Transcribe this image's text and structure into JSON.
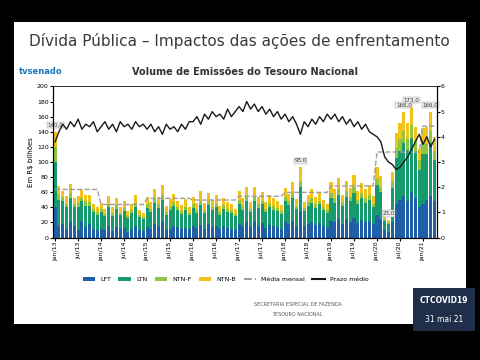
{
  "slide_title": "Dívida Pública – Impactos das ações de enfrentamento",
  "overlay": {
    "logo": "tvsenado",
    "program": "CTCOVID19",
    "date": "31 mai 21"
  },
  "footer": [
    "SECRETARIA ESPECIAL DE FAZENDA",
    "TESOURO NACIONAL"
  ],
  "chart_data": {
    "type": "bar",
    "stacked": true,
    "title": "Volume de Emissões do Tesouro Nacional",
    "y_label": "Em R$ bilhões",
    "categories": [
      "jan/13",
      null,
      null,
      null,
      null,
      null,
      "jul/13",
      null,
      null,
      null,
      null,
      null,
      "jan/14",
      null,
      null,
      null,
      null,
      null,
      "jul/14",
      null,
      null,
      null,
      null,
      null,
      "jan/15",
      null,
      null,
      null,
      null,
      null,
      "jul/15",
      null,
      null,
      null,
      null,
      null,
      "jan/16",
      null,
      null,
      null,
      null,
      null,
      "jul/16",
      null,
      null,
      null,
      null,
      null,
      "jan/17",
      null,
      null,
      null,
      null,
      null,
      "jul/17",
      null,
      null,
      null,
      null,
      null,
      "jan/18",
      null,
      null,
      null,
      null,
      null,
      "jul/18",
      null,
      null,
      null,
      null,
      null,
      "jan/19",
      null,
      null,
      null,
      null,
      null,
      "jul/19",
      null,
      null,
      null,
      null,
      null,
      "jan/20",
      null,
      null,
      null,
      null,
      null,
      "jul/20",
      null,
      null,
      null,
      null,
      null,
      "jan/21",
      null,
      null,
      null
    ],
    "series": [
      {
        "name": "LFT",
        "type": "bar",
        "color": "#1f5fa8",
        "values": [
          40,
          15,
          18,
          12,
          20,
          15,
          10,
          22,
          14,
          18,
          12,
          10,
          12,
          10,
          15,
          9,
          14,
          11,
          13,
          8,
          12,
          16,
          10,
          9,
          14,
          12,
          18,
          15,
          20,
          10,
          12,
          16,
          14,
          11,
          13,
          12,
          15,
          13,
          17,
          12,
          18,
          14,
          16,
          11,
          15,
          13,
          12,
          10,
          18,
          15,
          20,
          14,
          22,
          16,
          19,
          13,
          17,
          15,
          14,
          12,
          20,
          18,
          22,
          16,
          35,
          15,
          18,
          20,
          17,
          19,
          16,
          14,
          22,
          20,
          25,
          18,
          24,
          21,
          26,
          19,
          23,
          20,
          22,
          18,
          30,
          25,
          10,
          8,
          20,
          45,
          50,
          55,
          48,
          60,
          52,
          40,
          45,
          50,
          55,
          48
        ]
      },
      {
        "name": "LTN",
        "type": "bar",
        "color": "#179a6e",
        "values": [
          60,
          35,
          30,
          28,
          32,
          25,
          30,
          26,
          28,
          24,
          22,
          20,
          22,
          18,
          25,
          20,
          24,
          19,
          22,
          18,
          20,
          25,
          17,
          15,
          25,
          22,
          28,
          24,
          30,
          20,
          24,
          26,
          22,
          20,
          23,
          18,
          24,
          20,
          26,
          21,
          25,
          22,
          24,
          19,
          23,
          21,
          20,
          18,
          26,
          22,
          28,
          20,
          27,
          23,
          25,
          21,
          24,
          22,
          21,
          19,
          28,
          25,
          30,
          22,
          32,
          20,
          24,
          26,
          22,
          25,
          21,
          19,
          30,
          26,
          32,
          24,
          30,
          27,
          33,
          25,
          29,
          26,
          28,
          22,
          40,
          35,
          12,
          10,
          45,
          60,
          65,
          70,
          68,
          72,
          60,
          50,
          65,
          60,
          70,
          55
        ]
      },
      {
        "name": "NTN-F",
        "type": "bar",
        "color": "#8dc63f",
        "values": [
          20,
          8,
          6,
          5,
          7,
          5,
          6,
          5,
          6,
          5,
          4,
          4,
          4,
          3,
          5,
          4,
          5,
          3,
          4,
          3,
          4,
          5,
          3,
          3,
          5,
          4,
          6,
          5,
          6,
          4,
          5,
          5,
          4,
          4,
          5,
          3,
          5,
          4,
          6,
          4,
          5,
          4,
          5,
          4,
          5,
          4,
          4,
          3,
          6,
          5,
          6,
          4,
          6,
          5,
          5,
          4,
          5,
          5,
          4,
          4,
          6,
          5,
          7,
          4,
          8,
          4,
          5,
          6,
          5,
          5,
          4,
          4,
          7,
          6,
          7,
          5,
          7,
          6,
          8,
          6,
          7,
          6,
          6,
          5,
          8,
          7,
          3,
          2,
          10,
          14,
          15,
          16,
          15,
          17,
          14,
          12,
          15,
          14,
          16,
          12
        ]
      },
      {
        "name": "NTN-B",
        "type": "bar",
        "color": "#f2c21b",
        "values": [
          20,
          10,
          8,
          10,
          12,
          8,
          9,
          10,
          8,
          9,
          7,
          6,
          8,
          7,
          10,
          8,
          9,
          7,
          9,
          6,
          8,
          10,
          7,
          6,
          10,
          9,
          12,
          10,
          14,
          8,
          10,
          11,
          9,
          8,
          10,
          7,
          10,
          9,
          12,
          9,
          11,
          10,
          11,
          8,
          10,
          9,
          8,
          7,
          12,
          10,
          13,
          9,
          12,
          10,
          11,
          9,
          11,
          10,
          9,
          8,
          12,
          10,
          14,
          9,
          18,
          8,
          10,
          12,
          10,
          11,
          9,
          8,
          14,
          12,
          15,
          10,
          14,
          12,
          16,
          12,
          13,
          12,
          13,
          10,
          15,
          14,
          5,
          3,
          12,
          20,
          22,
          25,
          20,
          24,
          20,
          15,
          20,
          22,
          25,
          18
        ]
      },
      {
        "name": "Média mensal",
        "type": "line",
        "line_style": "dashed",
        "color": "#9e9e9e",
        "values": [
          63.7,
          63.7,
          63.7,
          63.7,
          63.7,
          63.7,
          63.7,
          63.7,
          63.7,
          63.7,
          63.7,
          63.7,
          43.8,
          43.8,
          43.8,
          43.8,
          43.8,
          43.8,
          43.8,
          43.8,
          43.8,
          43.8,
          43.8,
          43.8,
          51.9,
          51.9,
          51.9,
          51.9,
          51.9,
          51.9,
          51.9,
          51.9,
          51.9,
          51.9,
          51.9,
          51.9,
          49.7,
          49.7,
          49.7,
          49.7,
          49.7,
          49.7,
          49.7,
          49.7,
          49.7,
          49.7,
          49.7,
          49.7,
          54.7,
          54.7,
          54.7,
          54.7,
          54.7,
          54.7,
          54.7,
          54.7,
          54.7,
          54.7,
          54.7,
          54.7,
          59.8,
          59.8,
          59.8,
          59.8,
          59.8,
          59.8,
          59.8,
          59.8,
          59.8,
          59.8,
          59.8,
          59.8,
          68.3,
          68.3,
          68.3,
          68.3,
          68.3,
          68.3,
          68.3,
          68.3,
          68.3,
          68.3,
          68.3,
          68.3,
          113.2,
          113.2,
          113.2,
          113.2,
          113.2,
          113.2,
          113.2,
          113.2,
          113.2,
          113.2,
          113.2,
          113.2,
          147.5,
          147.5,
          147.5,
          147.5
        ]
      },
      {
        "name": "Prazo médio",
        "type": "line",
        "line_style": "solid",
        "color": "#1a1a1a",
        "axis": "y2",
        "values": [
          3.8,
          4.2,
          4.5,
          4.3,
          4.6,
          4.4,
          4.7,
          4.3,
          4.5,
          4.4,
          4.6,
          4.2,
          4.4,
          4.6,
          4.3,
          4.5,
          4.2,
          4.6,
          4.4,
          4.5,
          4.3,
          4.6,
          4.4,
          4.5,
          4.3,
          4.5,
          4.2,
          4.4,
          4.1,
          4.5,
          4.3,
          4.4,
          4.2,
          4.5,
          4.3,
          4.6,
          4.6,
          4.8,
          4.5,
          4.9,
          4.7,
          5.0,
          4.8,
          4.9,
          4.7,
          5.1,
          4.8,
          5.0,
          5.2,
          5.0,
          5.4,
          5.1,
          5.3,
          5.0,
          5.2,
          4.9,
          5.1,
          4.8,
          5.0,
          4.7,
          4.9,
          4.6,
          4.8,
          4.5,
          4.1,
          4.6,
          4.4,
          4.7,
          4.5,
          4.8,
          4.6,
          4.9,
          4.7,
          4.9,
          4.6,
          4.8,
          4.5,
          4.7,
          4.4,
          4.6,
          4.3,
          4.5,
          4.2,
          4.1,
          4.0,
          3.8,
          3.2,
          3.0,
          2.9,
          2.7,
          2.8,
          3.0,
          3.2,
          3.5,
          3.8,
          4.1,
          3.7,
          4.0,
          3.6,
          3.9
        ]
      }
    ],
    "annotations": [
      {
        "text": "140,0",
        "x": 0,
        "y": 140
      },
      {
        "text": "93,0",
        "x": 64,
        "y": 93
      },
      {
        "text": "23,0",
        "x": 87,
        "y": 23
      },
      {
        "text": "166,0",
        "x": 91,
        "y": 166
      },
      {
        "text": "173,0",
        "x": 93,
        "y": 173
      },
      {
        "text": "166,0",
        "x": 98,
        "y": 166
      }
    ],
    "ylim": [
      0,
      200
    ],
    "yticks": [
      0,
      20,
      40,
      60,
      80,
      100,
      120,
      140,
      160,
      180,
      200
    ],
    "y2lim": [
      0,
      6
    ],
    "y2ticks": [
      0,
      1,
      2,
      3,
      4,
      5,
      6
    ],
    "legend": "lower center"
  }
}
